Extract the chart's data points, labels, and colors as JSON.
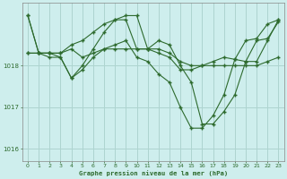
{
  "title": "Graphe pression niveau de la mer (hPa)",
  "background_color": "#ceeeed",
  "plot_bg_color": "#ceeeed",
  "line_color": "#2d6a2d",
  "marker_color": "#2d6a2d",
  "grid_color": "#aed4d0",
  "tick_label_color": "#2d6a2d",
  "title_color": "#2d6a2d",
  "xlim": [
    -0.5,
    23.5
  ],
  "ylim": [
    1015.7,
    1019.5
  ],
  "yticks": [
    1016,
    1017,
    1018
  ],
  "xticks": [
    0,
    1,
    2,
    3,
    4,
    5,
    6,
    7,
    8,
    9,
    10,
    11,
    12,
    13,
    14,
    15,
    16,
    17,
    18,
    19,
    20,
    21,
    22,
    23
  ],
  "series": [
    {
      "x": [
        0,
        1,
        2,
        3,
        4,
        5,
        6,
        7,
        8,
        9,
        10,
        11,
        12,
        13,
        14,
        15,
        16,
        17,
        18,
        19,
        20,
        21,
        22,
        23
      ],
      "y": [
        1019.2,
        1018.3,
        1018.3,
        1018.3,
        1018.4,
        1018.2,
        1018.3,
        1018.4,
        1018.4,
        1018.4,
        1018.4,
        1018.4,
        1018.4,
        1018.3,
        1018.1,
        1018.0,
        1018.0,
        1018.0,
        1018.0,
        1018.0,
        1018.0,
        1018.0,
        1018.1,
        1018.2
      ]
    },
    {
      "x": [
        0,
        1,
        2,
        3,
        4,
        5,
        6,
        7,
        8,
        9,
        10,
        11,
        12,
        13,
        14,
        15,
        16,
        17,
        18,
        19,
        20,
        21,
        22,
        23
      ],
      "y": [
        1019.2,
        1018.3,
        1018.3,
        1018.3,
        1018.5,
        1018.6,
        1018.8,
        1019.0,
        1019.1,
        1019.1,
        1018.4,
        1018.4,
        1018.3,
        1018.2,
        1017.9,
        1017.9,
        1018.0,
        1018.1,
        1018.2,
        1018.15,
        1018.6,
        1018.65,
        1019.0,
        1019.1
      ]
    },
    {
      "x": [
        0,
        1,
        2,
        3,
        4,
        5,
        6,
        7,
        8,
        9,
        10,
        11,
        12,
        13,
        14,
        15,
        16,
        17,
        18,
        19,
        20,
        21,
        22,
        23
      ],
      "y": [
        1018.3,
        1018.3,
        1018.3,
        1018.2,
        1017.7,
        1018.0,
        1018.4,
        1018.8,
        1019.1,
        1019.2,
        1019.2,
        1018.4,
        1018.6,
        1018.5,
        1018.0,
        1017.6,
        1016.6,
        1016.6,
        1016.9,
        1017.3,
        1018.1,
        1018.1,
        1018.6,
        1019.1
      ]
    },
    {
      "x": [
        0,
        1,
        2,
        3,
        4,
        5,
        6,
        7,
        8,
        9,
        10,
        11,
        12,
        13,
        14,
        15,
        16,
        17,
        18,
        19,
        20,
        21,
        22,
        23
      ],
      "y": [
        1018.3,
        1018.3,
        1018.2,
        1018.2,
        1017.7,
        1017.9,
        1018.2,
        1018.4,
        1018.5,
        1018.6,
        1018.2,
        1018.1,
        1017.8,
        1017.6,
        1017.0,
        1016.5,
        1016.5,
        1016.8,
        1017.3,
        1018.15,
        1018.1,
        1018.6,
        1018.65,
        1019.05
      ]
    }
  ]
}
